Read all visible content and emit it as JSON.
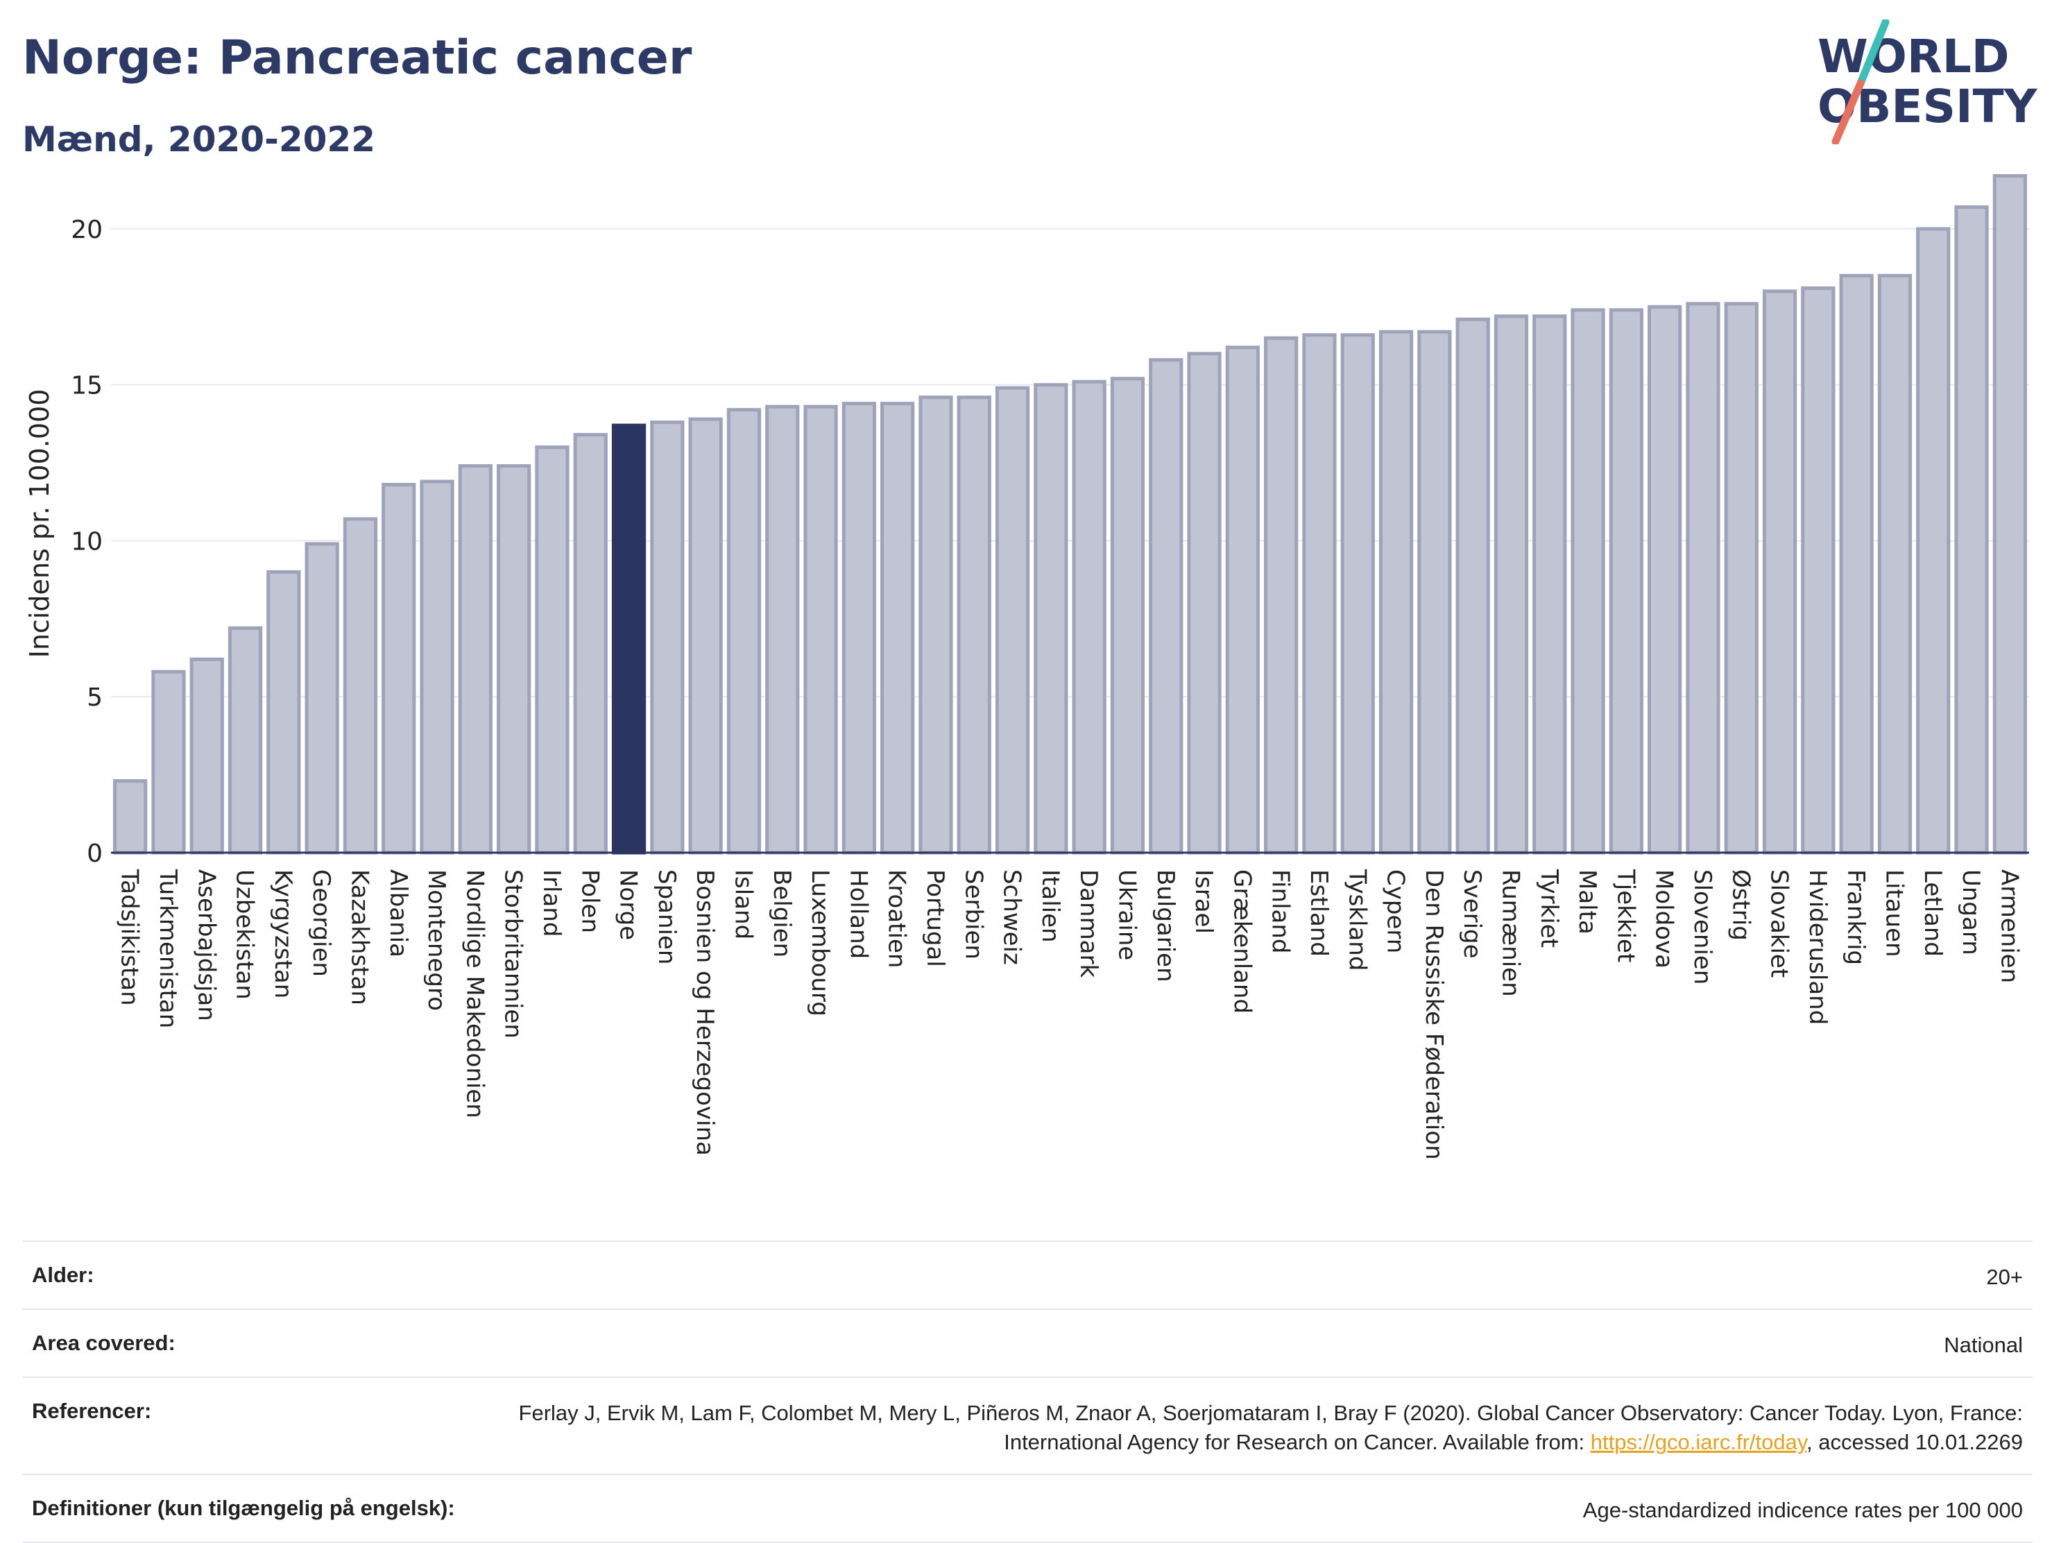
{
  "header": {
    "title": "Norge: Pancreatic cancer",
    "subtitle": "Mænd, 2020-2022"
  },
  "logo": {
    "line1": "WORLD",
    "line2": "OBESITY",
    "colors": {
      "text": "#2d3a66",
      "slash_teal": "#3dbfb8",
      "slash_coral": "#e8705e"
    }
  },
  "colors": {
    "bar": "#c0c4d3",
    "bar_stroke": "#9ea3b9",
    "highlight": "#2b3561",
    "grid": "#e6e8ee",
    "axis": "#2b3561"
  },
  "chart_data": {
    "type": "bar",
    "title": "",
    "xlabel": "",
    "ylabel": "Incidens pr. 100.000",
    "ylim": [
      0,
      22
    ],
    "yticks": [
      0,
      5,
      10,
      15,
      20
    ],
    "grid": true,
    "highlight": "Norge",
    "categories": [
      "Tadsjikistan",
      "Turkmenistan",
      "Aserbajdsjan",
      "Uzbekistan",
      "Kyrgyzstan",
      "Georgien",
      "Kazakhstan",
      "Albania",
      "Montenegro",
      "Nordlige Makedonien",
      "Storbritannien",
      "Irland",
      "Polen",
      "Norge",
      "Spanien",
      "Bosnien og Herzegovina",
      "Island",
      "Belgien",
      "Luxembourg",
      "Holland",
      "Kroatien",
      "Portugal",
      "Serbien",
      "Schweiz",
      "Italien",
      "Danmark",
      "Ukraine",
      "Bulgarien",
      "Israel",
      "Grækenland",
      "Finland",
      "Estland",
      "Tyskland",
      "Cypern",
      "Den Russiske Føderation",
      "Sverige",
      "Rumænien",
      "Tyrkiet",
      "Malta",
      "Tjekkiet",
      "Moldova",
      "Slovenien",
      "Østrig",
      "Slovakiet",
      "Hviderusland",
      "Frankrig",
      "Litauen",
      "Letland",
      "Ungarn",
      "Armenien"
    ],
    "values": [
      2.3,
      5.8,
      6.2,
      7.2,
      9.0,
      9.9,
      10.7,
      11.8,
      11.9,
      12.4,
      12.4,
      13.0,
      13.4,
      13.7,
      13.8,
      13.9,
      14.2,
      14.3,
      14.3,
      14.4,
      14.4,
      14.6,
      14.6,
      14.9,
      15.0,
      15.1,
      15.2,
      15.8,
      16.0,
      16.2,
      16.5,
      16.6,
      16.6,
      16.7,
      16.7,
      17.1,
      17.2,
      17.2,
      17.4,
      17.4,
      17.5,
      17.6,
      17.6,
      18.0,
      18.1,
      18.5,
      18.5,
      20.0,
      20.7,
      21.7
    ]
  },
  "info": {
    "age_label": "Alder:",
    "age_value": "20+",
    "area_label": "Area covered:",
    "area_value": "National",
    "ref_label": "Referencer:",
    "ref_text_1": "Ferlay J, Ervik M, Lam F, Colombet M, Mery L, Piñeros M, Znaor A, Soerjomataram I, Bray F (2020). Global Cancer Observatory: Cancer Today. Lyon, France: International Agency for Research on Cancer. Available from: ",
    "ref_link": "https://gco.iarc.fr/today",
    "ref_text_2": ", accessed 10.01.2269",
    "def_label": "Definitioner (kun tilgængelig på engelsk):",
    "def_value": "Age-standardized indicence rates per 100 000"
  }
}
